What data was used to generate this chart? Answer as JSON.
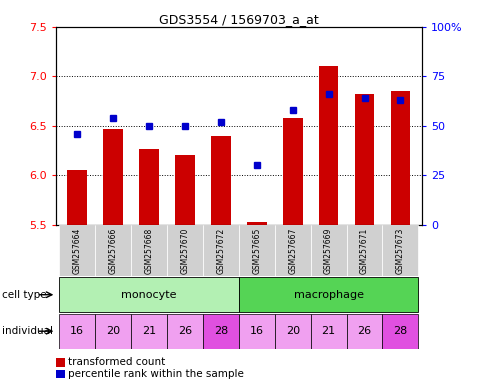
{
  "title": "GDS3554 / 1569703_a_at",
  "samples": [
    "GSM257664",
    "GSM257666",
    "GSM257668",
    "GSM257670",
    "GSM257672",
    "GSM257665",
    "GSM257667",
    "GSM257669",
    "GSM257671",
    "GSM257673"
  ],
  "red_values": [
    6.05,
    6.47,
    6.27,
    6.2,
    6.4,
    5.53,
    6.58,
    7.1,
    6.82,
    6.85
  ],
  "blue_values": [
    46,
    54,
    50,
    50,
    52,
    30,
    58,
    66,
    64,
    63
  ],
  "ylim_left": [
    5.5,
    7.5
  ],
  "ylim_right": [
    0,
    100
  ],
  "yticks_left": [
    5.5,
    6.0,
    6.5,
    7.0,
    7.5
  ],
  "yticks_right": [
    0,
    25,
    50,
    75,
    100
  ],
  "ytick_labels_right": [
    "0",
    "25",
    "50",
    "75",
    "100%"
  ],
  "individuals": [
    "16",
    "20",
    "21",
    "26",
    "28",
    "16",
    "20",
    "21",
    "26",
    "28"
  ],
  "monocyte_color": "#b3f0b3",
  "macrophage_color": "#55d455",
  "individual_light_color": "#f0a0f0",
  "individual_dark_color": "#e050e0",
  "individual_dark_indices": [
    4,
    9
  ],
  "bar_color": "#cc0000",
  "dot_color": "#0000cc",
  "bar_bottom": 5.5,
  "bar_width": 0.55,
  "legend_red": "transformed count",
  "legend_blue": "percentile rank within the sample",
  "sample_box_color": "#d0d0d0",
  "fig_width": 4.85,
  "fig_height": 3.84
}
